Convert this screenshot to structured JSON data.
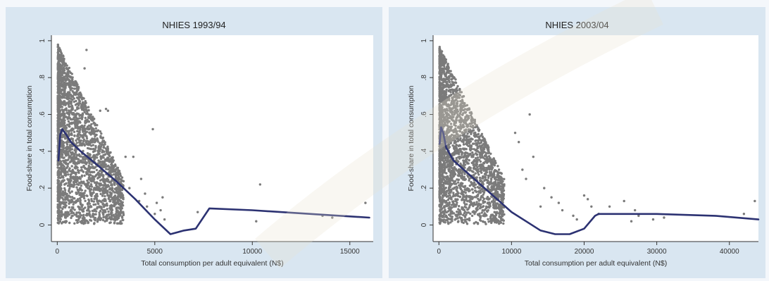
{
  "chart_data": [
    {
      "type": "scatter",
      "title": "NHIES 1993/94",
      "xlabel": "Total consumption per adult equivalent (N$)",
      "ylabel": "Food-share in total consumption",
      "xlim": [
        -300,
        16200
      ],
      "ylim": [
        -0.09,
        1.03
      ],
      "x_ticks": [
        0,
        5000,
        10000,
        15000
      ],
      "x_tick_labels": [
        "0",
        "5000",
        "10000",
        "15000"
      ],
      "y_ticks": [
        0,
        0.2,
        0.4,
        0.6,
        0.8,
        1
      ],
      "y_tick_labels": [
        "0",
        ".2",
        ".4",
        ".6",
        ".8",
        "1"
      ],
      "grid": false,
      "legend": "none",
      "colors": {
        "points": "#7b7b7b",
        "curve": "#2c3272",
        "plot_bg": "#ffffff",
        "panel_bg": "#d9e6f1"
      },
      "series": [
        {
          "type": "scatter",
          "cluster": {
            "x_min": 30,
            "x_max": 3400,
            "y_min": 0.005,
            "y_max": 0.98
          },
          "outliers": [
            [
              1500,
              0.95
            ],
            [
              1400,
              0.85
            ],
            [
              2200,
              0.62
            ],
            [
              2600,
              0.62
            ],
            [
              2500,
              0.63
            ],
            [
              4900,
              0.52
            ],
            [
              3900,
              0.37
            ],
            [
              3500,
              0.37
            ],
            [
              4300,
              0.25
            ],
            [
              3700,
              0.2
            ],
            [
              4200,
              0.13
            ],
            [
              4600,
              0.1
            ],
            [
              5100,
              0.12
            ],
            [
              5300,
              0.08
            ],
            [
              5400,
              0.15
            ],
            [
              5000,
              0.06
            ],
            [
              4500,
              0.17
            ],
            [
              5500,
              0.03
            ],
            [
              7200,
              0.07
            ],
            [
              10400,
              0.22
            ],
            [
              10200,
              0.02
            ],
            [
              13600,
              0.05
            ],
            [
              14100,
              0.04
            ],
            [
              15800,
              0.12
            ]
          ]
        },
        {
          "type": "line",
          "points": [
            [
              60,
              0.35
            ],
            [
              150,
              0.49
            ],
            [
              250,
              0.52
            ],
            [
              400,
              0.5
            ],
            [
              700,
              0.45
            ],
            [
              1200,
              0.4
            ],
            [
              2000,
              0.33
            ],
            [
              3000,
              0.24
            ],
            [
              4000,
              0.14
            ],
            [
              5000,
              0.03
            ],
            [
              5800,
              -0.05
            ],
            [
              6500,
              -0.03
            ],
            [
              7100,
              -0.02
            ],
            [
              7800,
              0.09
            ],
            [
              10000,
              0.08
            ],
            [
              13000,
              0.06
            ],
            [
              16000,
              0.04
            ]
          ]
        }
      ]
    },
    {
      "type": "scatter",
      "title": "NHIES 2003/04",
      "xlabel": "Total consumption per adult equivalent (N$)",
      "ylabel": "Food-share in total consumption",
      "xlim": [
        -800,
        44000
      ],
      "ylim": [
        -0.09,
        1.03
      ],
      "x_ticks": [
        0,
        10000,
        20000,
        30000,
        40000
      ],
      "x_tick_labels": [
        "0",
        "10000",
        "20000",
        "30000",
        "40000"
      ],
      "y_ticks": [
        0,
        0.2,
        0.4,
        0.6,
        0.8,
        1
      ],
      "y_tick_labels": [
        "0",
        ".2",
        ".4",
        ".6",
        ".8",
        "1"
      ],
      "grid": false,
      "legend": "none",
      "colors": {
        "points": "#7b7b7b",
        "curve": "#2c3272",
        "plot_bg": "#ffffff",
        "panel_bg": "#d9e6f1"
      },
      "series": [
        {
          "type": "scatter",
          "cluster": {
            "x_min": 80,
            "x_max": 9000,
            "y_min": 0.005,
            "y_max": 0.97
          },
          "outliers": [
            [
              10500,
              0.5
            ],
            [
              11000,
              0.45
            ],
            [
              12500,
              0.6
            ],
            [
              13000,
              0.37
            ],
            [
              11500,
              0.3
            ],
            [
              12000,
              0.25
            ],
            [
              14500,
              0.2
            ],
            [
              15500,
              0.15
            ],
            [
              16500,
              0.12
            ],
            [
              17000,
              0.08
            ],
            [
              14000,
              0.1
            ],
            [
              18500,
              0.05
            ],
            [
              19000,
              0.03
            ],
            [
              20500,
              0.14
            ],
            [
              21000,
              0.1
            ],
            [
              20000,
              0.16
            ],
            [
              22000,
              0.06
            ],
            [
              23500,
              0.1
            ],
            [
              25500,
              0.13
            ],
            [
              27000,
              0.08
            ],
            [
              27500,
              0.05
            ],
            [
              26500,
              0.02
            ],
            [
              29500,
              0.03
            ],
            [
              31000,
              0.04
            ],
            [
              43500,
              0.13
            ],
            [
              42000,
              0.06
            ]
          ]
        },
        {
          "type": "line",
          "points": [
            [
              100,
              0.44
            ],
            [
              300,
              0.53
            ],
            [
              600,
              0.5
            ],
            [
              1000,
              0.42
            ],
            [
              2000,
              0.35
            ],
            [
              4000,
              0.28
            ],
            [
              6000,
              0.21
            ],
            [
              8000,
              0.14
            ],
            [
              10000,
              0.07
            ],
            [
              12000,
              0.02
            ],
            [
              14000,
              -0.03
            ],
            [
              16000,
              -0.05
            ],
            [
              18000,
              -0.05
            ],
            [
              20000,
              -0.02
            ],
            [
              21500,
              0.05
            ],
            [
              22000,
              0.06
            ],
            [
              30000,
              0.06
            ],
            [
              38000,
              0.05
            ],
            [
              44000,
              0.03
            ]
          ]
        }
      ]
    }
  ]
}
